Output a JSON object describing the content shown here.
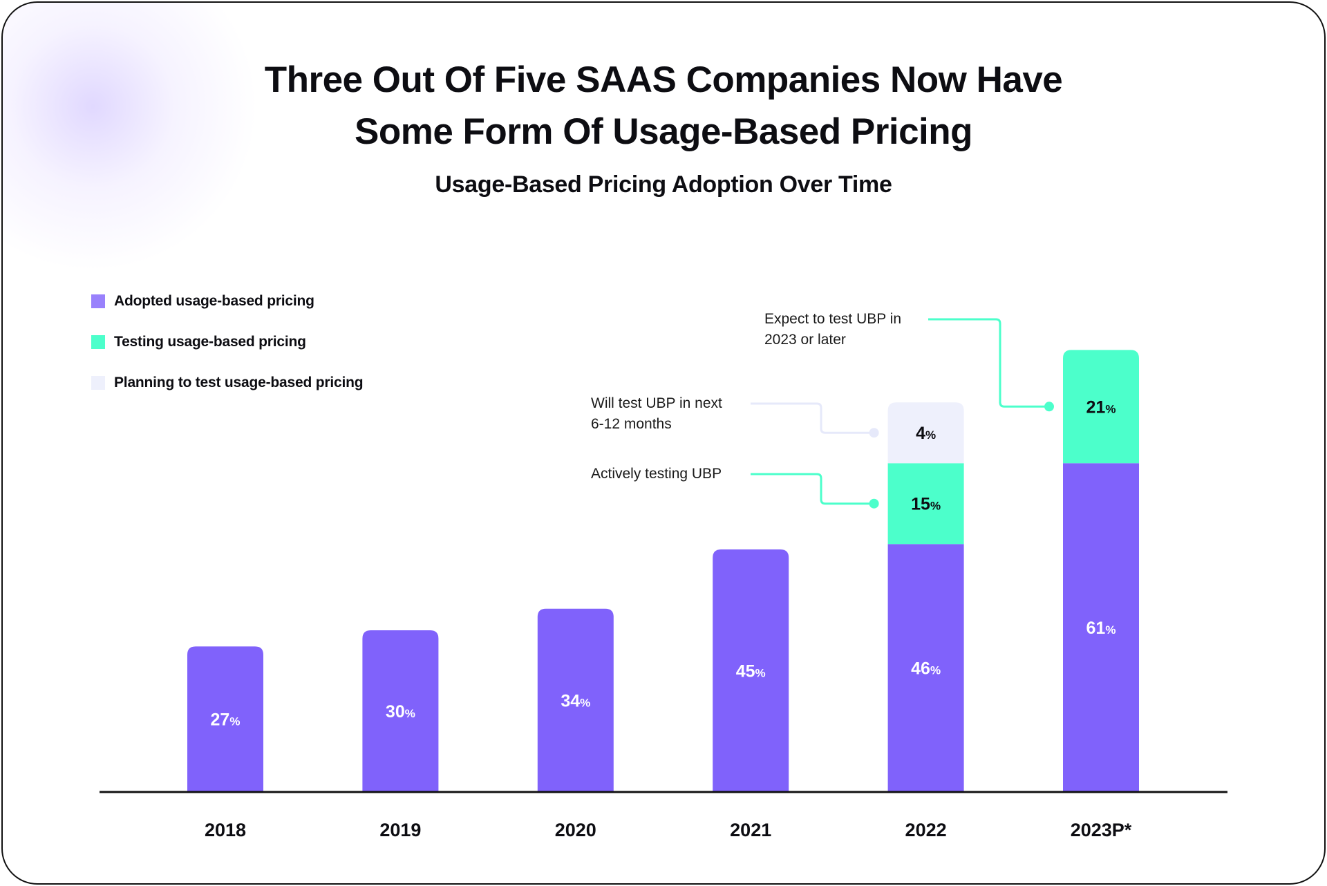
{
  "chart_data": {
    "type": "bar",
    "stacked": true,
    "title": "Three Out Of Five SAAS Companies Now Have Some Form Of Usage-Based Pricing",
    "title_lines": [
      "Three Out Of Five SAAS Companies Now Have",
      "Some Form Of Usage-Based Pricing"
    ],
    "subtitle": "Usage-Based Pricing Adoption Over Time",
    "categories": [
      "2018",
      "2019",
      "2020",
      "2021",
      "2022",
      "2023P*"
    ],
    "unit": "%",
    "series": [
      {
        "name": "Adopted usage-based pricing",
        "color": "#8062FB",
        "label_color": "#ffffff",
        "values": [
          27,
          30,
          34,
          45,
          46,
          61
        ]
      },
      {
        "name": "Testing usage-based pricing",
        "color": "#4CFFCB",
        "label_color": "#0d0d12",
        "values": [
          null,
          null,
          null,
          null,
          15,
          21
        ]
      },
      {
        "name": "Planning to test usage-based pricing",
        "color": "#EEF0FC",
        "label_color": "#0d0d12",
        "values": [
          null,
          null,
          null,
          null,
          4,
          null
        ]
      }
    ],
    "legend_position": "top-left",
    "grid": false,
    "annotations": [
      {
        "text_lines": [
          "Expect to test UBP in",
          "2023 or later"
        ],
        "category": "2023P*",
        "series": "Testing usage-based pricing",
        "color": "#4CFFCB"
      },
      {
        "text_lines": [
          "Will test UBP in next",
          "6-12 months"
        ],
        "category": "2022",
        "series": "Planning to test usage-based pricing",
        "color": "#E6E9FA"
      },
      {
        "text_lines": [
          "Actively testing UBP"
        ],
        "category": "2022",
        "series": "Testing usage-based pricing",
        "color": "#4CFFCB"
      }
    ]
  }
}
